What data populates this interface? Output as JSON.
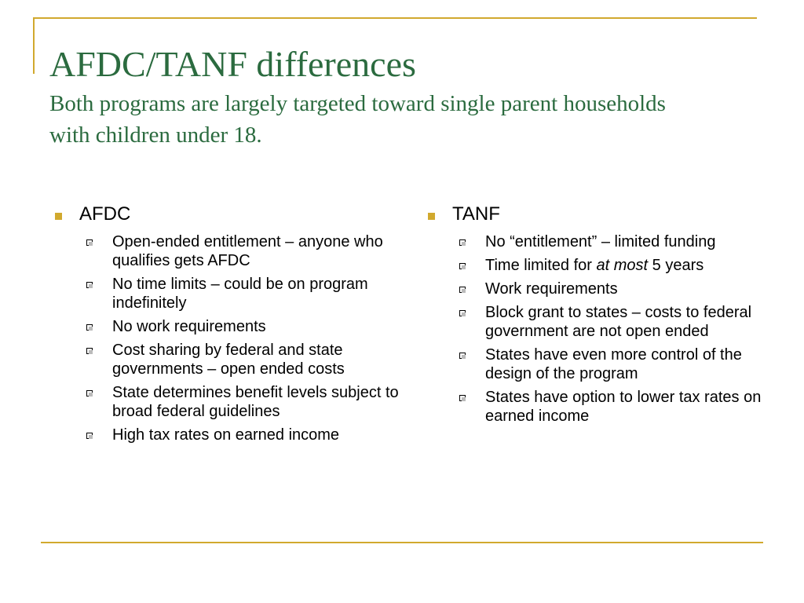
{
  "slide": {
    "title": "AFDC/TANF differences",
    "subtitle": "Both programs are largely targeted toward single parent households with children under 18.",
    "colors": {
      "title": "#2b6b3f",
      "accent": "#d1a92e"
    }
  },
  "left": {
    "heading": "AFDC",
    "items": [
      "Open-ended entitlement – anyone who qualifies gets AFDC",
      "No time limits – could be on program indefinitely",
      "No work requirements",
      "Cost sharing by federal and state governments – open ended costs",
      "State determines benefit levels subject to broad federal guidelines",
      "High tax rates on earned income"
    ]
  },
  "right": {
    "heading": "TANF",
    "items": [
      "No “entitlement” – limited funding",
      {
        "before": "Time limited for ",
        "emphasis": "at most",
        "after": " 5 years"
      },
      "Work requirements",
      "Block grant to states – costs to federal government are not open ended",
      "States have even more control of the design of the program",
      "States have option to lower tax rates on earned income"
    ]
  }
}
